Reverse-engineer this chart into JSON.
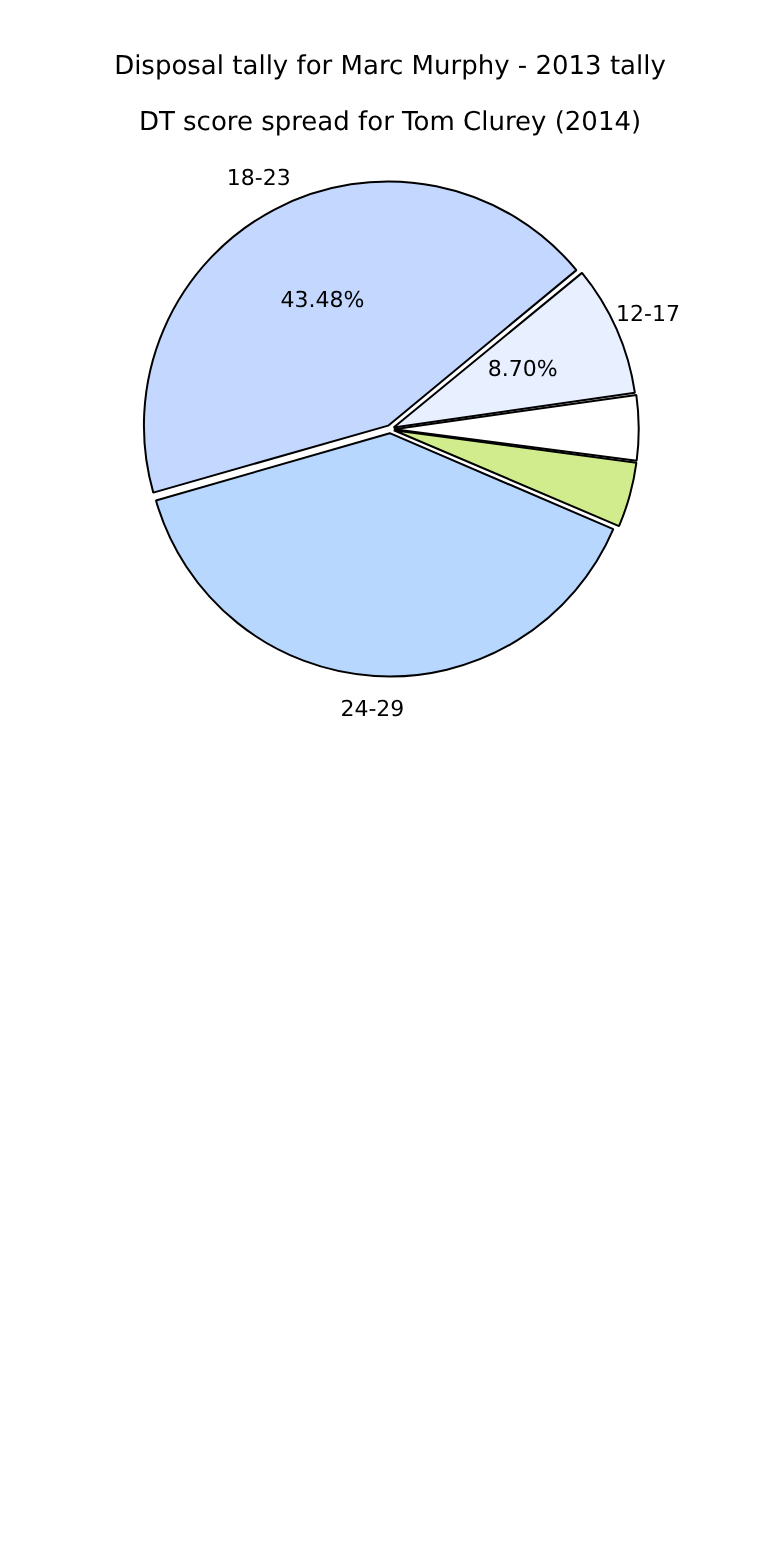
{
  "chart_data": {
    "type": "pie",
    "title": "Disposal tally for Marc Murphy - 2013 tally",
    "subtitle": "DT score spread for Tom Clurey (2014)",
    "categories": [
      "18-23",
      "12-17",
      null,
      null,
      "24-29"
    ],
    "values": [
      43.48,
      8.7,
      4.35,
      4.35,
      39.12
    ],
    "colors": [
      "#c4d8ff",
      "#e8f0ff",
      "#ffffff",
      "#d0ec8c",
      "#b7d7ff"
    ],
    "value_labels": [
      "43.48%",
      "8.70%",
      null,
      null,
      null
    ]
  }
}
